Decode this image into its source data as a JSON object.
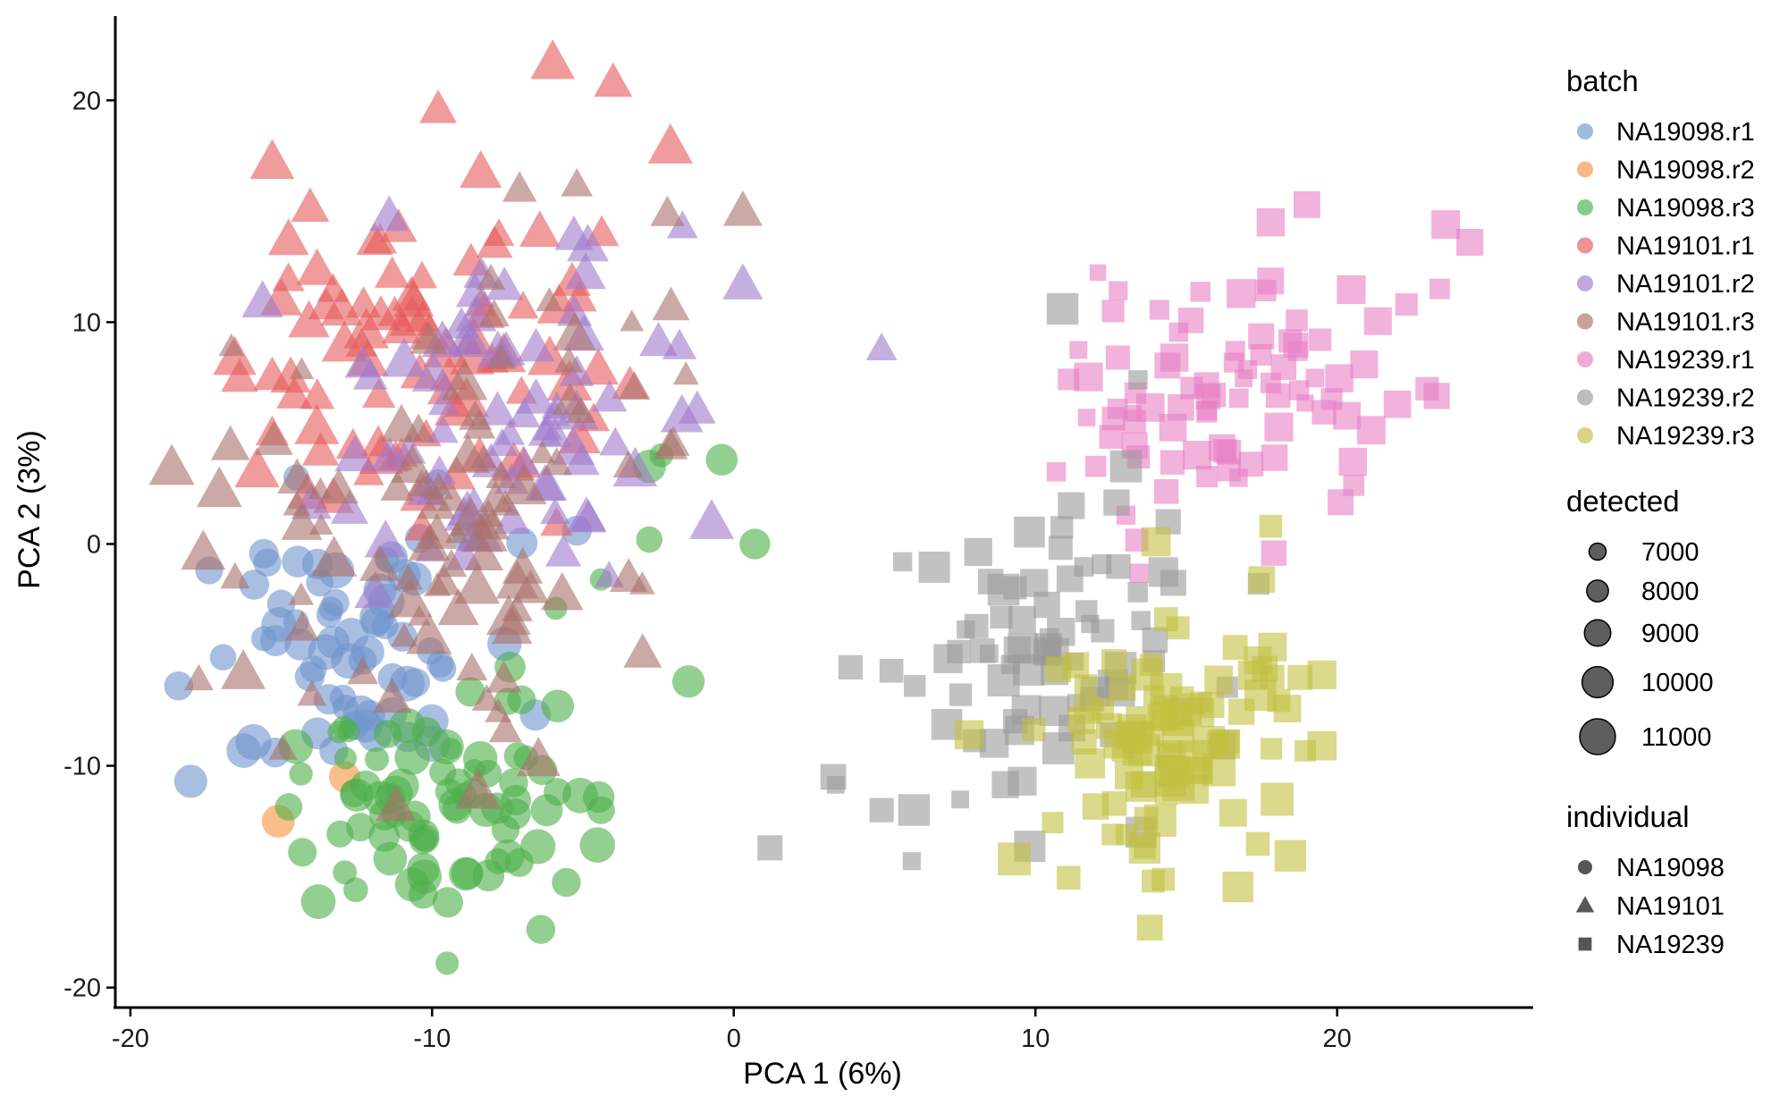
{
  "chart_data": {
    "type": "scatter",
    "xlabel": "PCA 1 (6%)",
    "ylabel": "PCA 2 (3%)",
    "xlim": [
      -20.5,
      26.5
    ],
    "ylim": [
      -20.9,
      23.8
    ],
    "xticks": [
      -20,
      -10,
      0,
      10,
      20
    ],
    "yticks": [
      -20,
      -10,
      0,
      10,
      20
    ],
    "xtick_labels": [
      "-20",
      "-10",
      "0",
      "10",
      "20"
    ],
    "ytick_labels": [
      "-20",
      "-10",
      "0",
      "10",
      "20"
    ],
    "grid": false,
    "legend": {
      "placement": "right",
      "batch_title": "batch",
      "detected_title": "detected",
      "individual_title": "individual",
      "detected_values": [
        7000,
        8000,
        9000,
        10000,
        11000
      ],
      "detected_labels": [
        "7000",
        "8000",
        "9000",
        "10000",
        "11000"
      ]
    },
    "individuals": [
      {
        "name": "NA19098",
        "shape": "circle"
      },
      {
        "name": "NA19101",
        "shape": "triangle"
      },
      {
        "name": "NA19239",
        "shape": "square"
      }
    ],
    "series": [
      {
        "name": "NA19098.r1",
        "individual": "NA19098",
        "color": "#6f95cd",
        "center": [
          -12.5,
          -5.0
        ],
        "spread": [
          2.7,
          2.6
        ],
        "count": 60,
        "detected_range": [
          8400,
          10800
        ],
        "anchors": [
          [
            -18.0,
            -10.7
          ],
          [
            -18.4,
            -6.4
          ],
          [
            -15.2,
            -9.4
          ],
          [
            -14.5,
            3.0
          ],
          [
            -13.8,
            -0.9
          ],
          [
            -5.2,
            0.6
          ],
          [
            -7.6,
            -4.5
          ],
          [
            -10.0,
            -9.0
          ],
          [
            -12.2,
            -8.2
          ]
        ]
      },
      {
        "name": "NA19098.r2",
        "individual": "NA19098",
        "color": "#f7923c",
        "center": [
          -14.0,
          -11.5
        ],
        "spread": [
          1.2,
          0.9
        ],
        "count": 0,
        "detected_range": [
          9500,
          10200
        ],
        "anchors": [
          [
            -15.1,
            -12.5
          ],
          [
            -12.9,
            -10.5
          ]
        ]
      },
      {
        "name": "NA19098.r3",
        "individual": "NA19098",
        "color": "#4daf4a",
        "center": [
          -9.8,
          -11.8
        ],
        "spread": [
          2.2,
          2.8
        ],
        "count": 75,
        "detected_range": [
          7800,
          10600
        ],
        "anchors": [
          [
            -9.5,
            -18.9
          ],
          [
            -6.2,
            -12.0
          ],
          [
            -4.4,
            -12.0
          ],
          [
            -1.5,
            -6.2
          ],
          [
            0.7,
            0.0
          ],
          [
            -2.8,
            0.2
          ],
          [
            -2.4,
            4.0
          ],
          [
            -2.8,
            3.5
          ],
          [
            -0.4,
            3.8
          ],
          [
            -4.4,
            -1.6
          ],
          [
            -5.9,
            -2.9
          ],
          [
            -7.5,
            -7.1
          ],
          [
            -12.2,
            -10.9
          ],
          [
            -14.3,
            -13.9
          ]
        ]
      },
      {
        "name": "NA19101.r1",
        "individual": "NA19101",
        "color": "#e6585a",
        "center": [
          -10.5,
          9.0
        ],
        "spread": [
          3.0,
          4.2
        ],
        "count": 80,
        "detected_range": [
          8200,
          10700
        ],
        "anchors": [
          [
            -6.0,
            21.7
          ],
          [
            -4.0,
            20.8
          ],
          [
            -9.8,
            19.6
          ],
          [
            -15.3,
            17.2
          ],
          [
            -2.1,
            17.9
          ],
          [
            -15.8,
            3.3
          ],
          [
            -15.3,
            5.0
          ],
          [
            -15.0,
            11.0
          ]
        ]
      },
      {
        "name": "NA19101.r2",
        "individual": "NA19101",
        "color": "#9f79cb",
        "center": [
          -8.0,
          5.0
        ],
        "spread": [
          2.8,
          3.6
        ],
        "count": 70,
        "detected_range": [
          8000,
          10500
        ],
        "anchors": [
          [
            4.9,
            8.8
          ],
          [
            0.3,
            11.7
          ],
          [
            -1.7,
            14.3
          ],
          [
            -1.8,
            8.9
          ],
          [
            -5.3,
            13.9
          ],
          [
            -14.0,
            1.8
          ],
          [
            -12.3,
            8.1
          ]
        ]
      },
      {
        "name": "NA19101.r3",
        "individual": "NA19101",
        "color": "#a9706b",
        "center": [
          -9.0,
          1.0
        ],
        "spread": [
          3.6,
          5.0
        ],
        "count": 90,
        "detected_range": [
          7000,
          10700
        ],
        "anchors": [
          [
            0.3,
            15.0
          ],
          [
            -5.2,
            16.2
          ],
          [
            -7.1,
            16.0
          ],
          [
            -2.2,
            14.9
          ],
          [
            -2.1,
            4.4
          ],
          [
            -3.5,
            3.5
          ],
          [
            -12.3,
            -5.8
          ],
          [
            -10.1,
            -4.2
          ],
          [
            -14.3,
            -3.8
          ]
        ]
      },
      {
        "name": "NA19239.r1",
        "individual": "NA19239",
        "color": "#e77fc4",
        "center": [
          16.5,
          6.5
        ],
        "spread": [
          2.6,
          2.6
        ],
        "count": 80,
        "detected_range": [
          7000,
          9800
        ],
        "anchors": [
          [
            17.8,
            14.5
          ],
          [
            19.0,
            15.3
          ],
          [
            23.6,
            14.4
          ],
          [
            24.4,
            13.6
          ],
          [
            23.4,
            11.5
          ],
          [
            22.3,
            10.8
          ],
          [
            22.0,
            6.3
          ],
          [
            12.0,
            3.5
          ],
          [
            13.0,
            1.3
          ],
          [
            11.7,
            5.7
          ]
        ]
      },
      {
        "name": "NA19239.r2",
        "individual": "NA19239",
        "color": "#999999",
        "center": [
          9.5,
          -5.5
        ],
        "spread": [
          2.4,
          3.5
        ],
        "count": 75,
        "detected_range": [
          7200,
          10500
        ],
        "anchors": [
          [
            1.2,
            -13.7
          ],
          [
            5.9,
            -14.3
          ],
          [
            4.9,
            -12.0
          ],
          [
            3.3,
            -10.5
          ],
          [
            6.0,
            -6.4
          ],
          [
            5.6,
            -0.8
          ],
          [
            10.9,
            10.6
          ],
          [
            13.4,
            7.4
          ],
          [
            13.0,
            3.5
          ],
          [
            14.4,
            1.0
          ],
          [
            17.4,
            -1.8
          ]
        ]
      },
      {
        "name": "NA19239.r3",
        "individual": "NA19239",
        "color": "#c1bf3f",
        "center": [
          14.5,
          -9.0
        ],
        "spread": [
          2.1,
          2.5
        ],
        "count": 90,
        "detected_range": [
          8000,
          10800
        ],
        "anchors": [
          [
            9.3,
            -14.2
          ],
          [
            13.9,
            -15.2
          ],
          [
            19.5,
            -9.1
          ],
          [
            19.5,
            -5.9
          ],
          [
            17.8,
            0.8
          ],
          [
            17.5,
            -1.6
          ],
          [
            14.0,
            0.1
          ],
          [
            7.8,
            -8.6
          ]
        ]
      }
    ]
  }
}
